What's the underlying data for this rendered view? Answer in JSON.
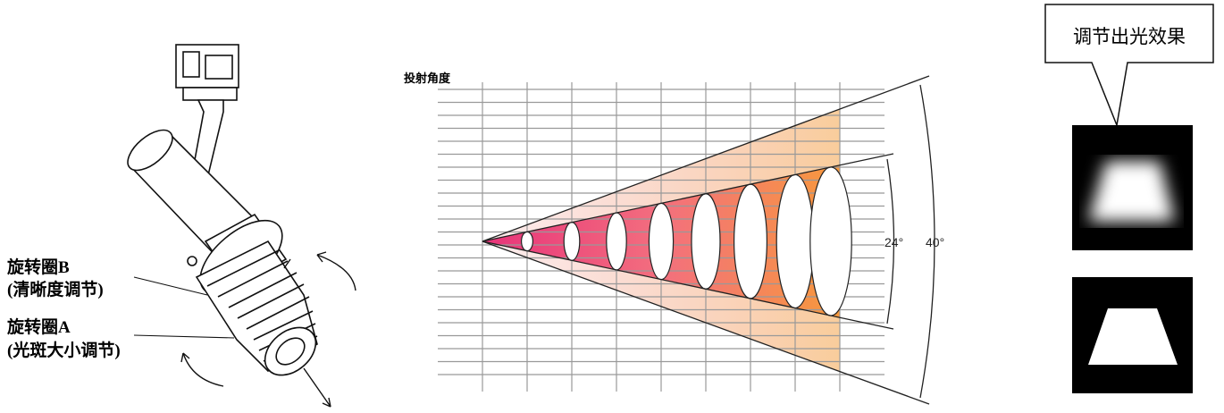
{
  "ring_b": {
    "name": "旋转圈B",
    "function": "(清晰度调节)"
  },
  "ring_a": {
    "name": "旋转圈A",
    "function": "(光斑大小调节)"
  },
  "beam_diagram": {
    "title": "投射角度",
    "inner_angle": "24°",
    "outer_angle": "40°"
  },
  "effect_callout": "调节出光效果"
}
